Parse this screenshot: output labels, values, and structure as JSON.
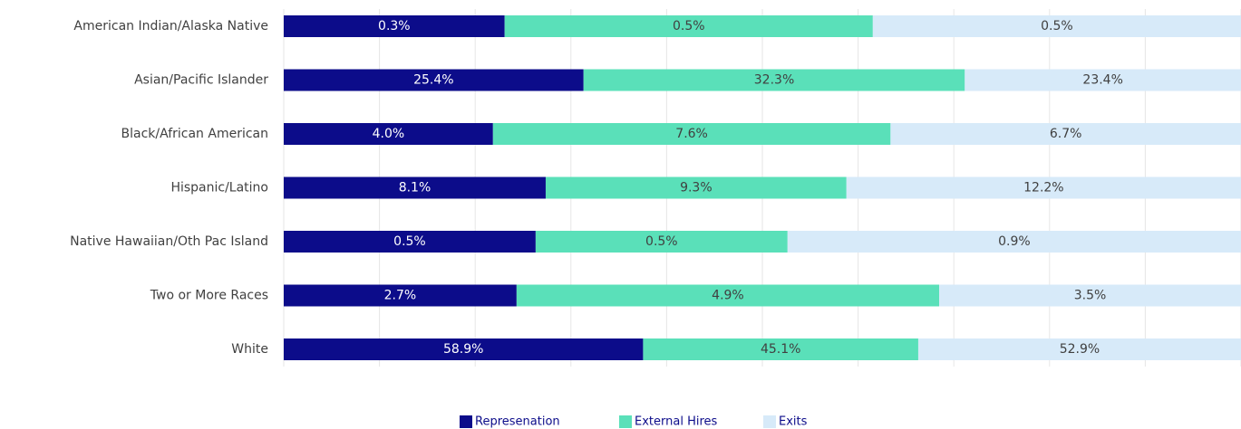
{
  "chart_data": {
    "type": "stacked_bar_100",
    "categories": [
      "American Indian/Alaska Native",
      "Asian/Pacific Islander",
      "Black/African American",
      "Hispanic/Latino",
      "Native Hawaiian/Oth Pac Island",
      "Two or More Races",
      "White"
    ],
    "series": [
      {
        "name": "Represenation",
        "color": "#0c0c8a",
        "values": [
          0.3,
          25.4,
          4.0,
          8.1,
          0.5,
          2.7,
          58.9
        ],
        "value_labels": [
          "0.3%",
          "25.4%",
          "4.0%",
          "8.1%",
          "0.5%",
          "2.7%",
          "58.9%"
        ]
      },
      {
        "name": "External Hires",
        "color": "#5ae0b9",
        "values": [
          0.5,
          32.3,
          7.6,
          9.3,
          0.5,
          4.9,
          45.1
        ],
        "value_labels": [
          "0.5%",
          "32.3%",
          "7.6%",
          "9.3%",
          "0.5%",
          "4.9%",
          "45.1%"
        ]
      },
      {
        "name": "Exits",
        "color": "#d7eaf9",
        "values": [
          0.5,
          23.4,
          6.7,
          12.2,
          0.9,
          3.5,
          52.9
        ],
        "value_labels": [
          "0.5%",
          "23.4%",
          "6.7%",
          "12.2%",
          "0.9%",
          "3.5%",
          "52.9%"
        ]
      }
    ],
    "xlim": [
      0,
      100
    ],
    "xticks": [
      0,
      10,
      20,
      30,
      40,
      50,
      60,
      70,
      80,
      90,
      100
    ],
    "grid": true,
    "legend": "bottom"
  }
}
